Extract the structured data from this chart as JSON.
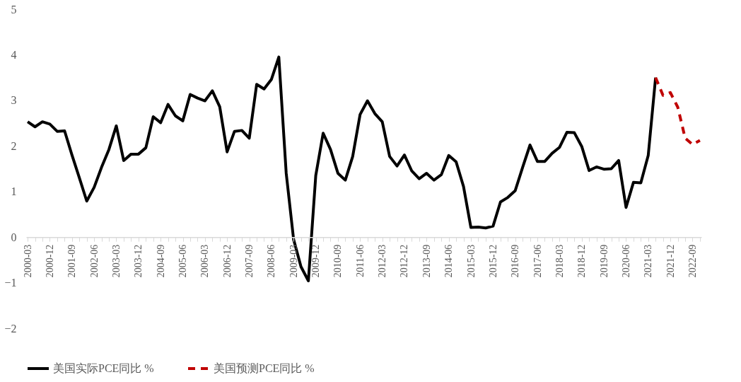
{
  "chart_data": {
    "type": "line",
    "categories": [
      "2000-03",
      null,
      null,
      "2000-12",
      null,
      null,
      "2001-09",
      null,
      null,
      "2002-06",
      null,
      null,
      "2003-03",
      null,
      null,
      "2003-12",
      null,
      null,
      "2004-09",
      null,
      null,
      "2005-06",
      null,
      null,
      "2006-03",
      null,
      null,
      "2006-12",
      null,
      null,
      "2007-09",
      null,
      null,
      "2008-06",
      null,
      null,
      "2009-03",
      null,
      null,
      "2009-12",
      null,
      null,
      "2010-09",
      null,
      null,
      "2011-06",
      null,
      null,
      "2012-03",
      null,
      null,
      "2012-12",
      null,
      null,
      "2013-09",
      null,
      null,
      "2014-06",
      null,
      null,
      "2015-03",
      null,
      null,
      "2015-12",
      null,
      null,
      "2016-09",
      null,
      null,
      "2017-06",
      null,
      null,
      "2018-03",
      null,
      null,
      "2018-12",
      null,
      null,
      "2019-09",
      null,
      null,
      "2020-06",
      null,
      null,
      "2021-03",
      null,
      null,
      "2021-12",
      null,
      null,
      "2022-09",
      null
    ],
    "series": [
      {
        "name": "美国实际PCE同比 %",
        "color": "#000000",
        "line_style": "solid",
        "values": [
          2.53,
          2.42,
          2.53,
          2.48,
          2.32,
          2.33,
          1.8,
          1.3,
          0.79,
          1.09,
          1.53,
          1.92,
          2.44,
          1.68,
          1.82,
          1.82,
          1.96,
          2.64,
          2.51,
          2.91,
          2.66,
          2.55,
          3.13,
          3.05,
          2.99,
          3.21,
          2.86,
          1.87,
          2.32,
          2.34,
          2.17,
          3.35,
          3.25,
          3.46,
          3.95,
          1.4,
          -0.05,
          -0.65,
          -0.96,
          1.35,
          2.28,
          1.92,
          1.4,
          1.25,
          1.77,
          2.69,
          2.99,
          2.71,
          2.53,
          1.77,
          1.56,
          1.8,
          1.45,
          1.28,
          1.4,
          1.25,
          1.37,
          1.79,
          1.65,
          1.11,
          0.21,
          0.22,
          0.2,
          0.24,
          0.77,
          0.87,
          1.02,
          1.53,
          2.02,
          1.66,
          1.66,
          1.84,
          1.97,
          2.3,
          2.29,
          1.99,
          1.46,
          1.54,
          1.49,
          1.5,
          1.68,
          0.65,
          1.2,
          1.19,
          1.79,
          3.5,
          null,
          null,
          null,
          null,
          null,
          null
        ]
      },
      {
        "name": "美国预测PCE同比 %",
        "color": "#c00000",
        "line_style": "dashed",
        "values": [
          null,
          null,
          null,
          null,
          null,
          null,
          null,
          null,
          null,
          null,
          null,
          null,
          null,
          null,
          null,
          null,
          null,
          null,
          null,
          null,
          null,
          null,
          null,
          null,
          null,
          null,
          null,
          null,
          null,
          null,
          null,
          null,
          null,
          null,
          null,
          null,
          null,
          null,
          null,
          null,
          null,
          null,
          null,
          null,
          null,
          null,
          null,
          null,
          null,
          null,
          null,
          null,
          null,
          null,
          null,
          null,
          null,
          null,
          null,
          null,
          null,
          null,
          null,
          null,
          null,
          null,
          null,
          null,
          null,
          null,
          null,
          null,
          null,
          null,
          null,
          null,
          null,
          null,
          null,
          null,
          null,
          null,
          null,
          null,
          null,
          3.5,
          3.11,
          3.17,
          2.85,
          2.17,
          2.03,
          2.12
        ]
      }
    ],
    "ylim": [
      -2,
      5
    ],
    "yticks": [
      -2,
      -1,
      0,
      1,
      2,
      3,
      4,
      5
    ],
    "grid": false,
    "legend": "bottom",
    "marker": "none"
  }
}
